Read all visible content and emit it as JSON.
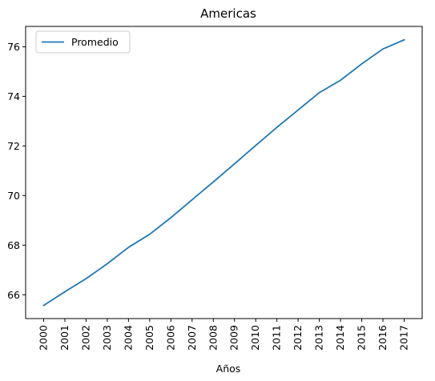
{
  "chart_data": {
    "type": "line",
    "title": "Americas",
    "xlabel": "Años",
    "ylabel": "",
    "x": [
      "2000",
      "2001",
      "2002",
      "2003",
      "2004",
      "2005",
      "2006",
      "2007",
      "2008",
      "2009",
      "2010",
      "2011",
      "2012",
      "2013",
      "2014",
      "2015",
      "2016",
      "2017"
    ],
    "series": [
      {
        "name": "Promedio",
        "color": "#1f77b4",
        "values": [
          65.57,
          66.12,
          66.65,
          67.25,
          67.91,
          68.44,
          69.11,
          69.83,
          70.55,
          71.28,
          72.02,
          72.75,
          73.45,
          74.15,
          74.65,
          75.31,
          75.91,
          76.28
        ]
      }
    ],
    "ylim": [
      65.04,
      76.82
    ],
    "yticks": [
      66,
      68,
      70,
      72,
      74,
      76
    ],
    "legend_position": "top-left",
    "grid": false
  }
}
